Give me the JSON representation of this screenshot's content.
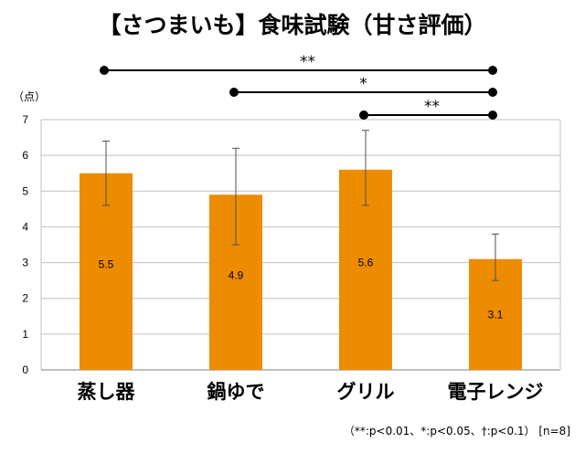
{
  "chart_data": {
    "type": "bar",
    "title": "【さつまいも】食味試験（甘さ評価）",
    "ylabel": "（点）",
    "ylim": [
      0,
      7
    ],
    "yticks": [
      "0",
      "1",
      "2",
      "3",
      "4",
      "5",
      "6",
      "7"
    ],
    "grid": true,
    "categories": [
      "蒸し器",
      "鍋ゆで",
      "グリル",
      "電子レンジ"
    ],
    "values": [
      5.5,
      4.9,
      5.6,
      3.1
    ],
    "data_labels": [
      "5.5",
      "4.9",
      "5.6",
      "3.1"
    ],
    "error_bars": [
      {
        "low": 4.6,
        "high": 6.4
      },
      {
        "low": 3.5,
        "high": 6.2
      },
      {
        "low": 4.6,
        "high": 6.7
      },
      {
        "low": 2.5,
        "high": 3.8
      }
    ],
    "significance": [
      {
        "from": "蒸し器",
        "to": "電子レンジ",
        "mark": "**"
      },
      {
        "from": "鍋ゆで",
        "to": "電子レンジ",
        "mark": "*"
      },
      {
        "from": "グリル",
        "to": "電子レンジ",
        "mark": "**"
      }
    ],
    "footnote": "（**:p<0.01、*:p<0.05、†:p<0.1） [n=8]",
    "colors": {
      "bar": "#ED8C00",
      "grid": "#C0C0C0",
      "axis": "#808080",
      "error": "#505050"
    }
  }
}
